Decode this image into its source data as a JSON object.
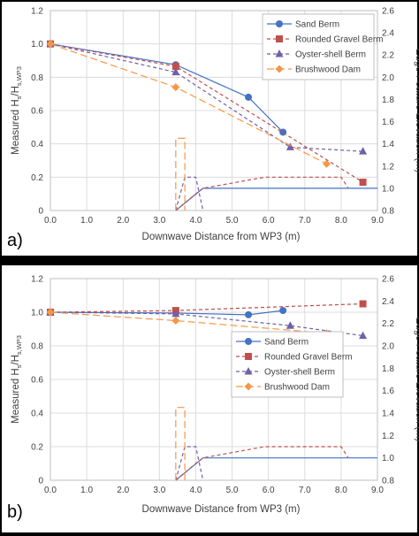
{
  "chart_data": [
    {
      "type": "line",
      "panel_label": "a)",
      "xlabel": "Downwave Distance from WP3 (m)",
      "ylabel_parts": [
        "Measured H",
        "s",
        "/H",
        "s,WP3"
      ],
      "y2label": "Edge Feature Elevation (m)",
      "xlim": [
        0,
        9
      ],
      "ylim": [
        0,
        1.2
      ],
      "y2lim": [
        0.8,
        2.6
      ],
      "x_ticks": [
        "0.0",
        "1.0",
        "2.0",
        "3.0",
        "4.0",
        "5.0",
        "6.0",
        "7.0",
        "8.0",
        "9.0"
      ],
      "y_ticks": [
        "0",
        "0.2",
        "0.4",
        "0.6",
        "0.8",
        "1.0",
        "1.2"
      ],
      "y2_ticks": [
        "0.8",
        "1.0",
        "1.2",
        "1.4",
        "1.6",
        "1.8",
        "2.0",
        "2.2",
        "2.4",
        "2.6"
      ],
      "grid": true,
      "legend_position": "top-right",
      "series": [
        {
          "name": "Sand Berm",
          "color": "#4472c4",
          "dash": "solid",
          "marker": "circle",
          "x": [
            0,
            3.45,
            5.45,
            6.4
          ],
          "y": [
            1.0,
            0.875,
            0.68,
            0.47
          ]
        },
        {
          "name": "Rounded Gravel Berm",
          "color": "#c0504d",
          "dash": "dash",
          "marker": "square",
          "x": [
            0,
            3.45,
            8.6
          ],
          "y": [
            1.0,
            0.865,
            0.17
          ]
        },
        {
          "name": "Oyster-shell Berm",
          "color": "#7060a8",
          "dash": "dash",
          "marker": "triangle",
          "x": [
            0,
            3.45,
            6.6,
            8.6
          ],
          "y": [
            1.0,
            0.83,
            0.38,
            0.355
          ]
        },
        {
          "name": "Brushwood Dam",
          "color": "#f79646",
          "dash": "longdash",
          "marker": "diamond",
          "x": [
            0,
            3.45,
            7.6
          ],
          "y": [
            1.0,
            0.74,
            0.28
          ]
        }
      ],
      "elevation_series": [
        {
          "color": "#4472c4",
          "dash": "solid",
          "x": [
            3.45,
            4.2,
            6.2,
            9.0
          ],
          "y": [
            0.8,
            1.0,
            1.0,
            1.0
          ]
        },
        {
          "color": "#c0504d",
          "dash": "dash",
          "x": [
            3.45,
            4.0,
            4.2,
            5.9,
            8.0,
            8.2
          ],
          "y": [
            0.8,
            0.95,
            1.0,
            1.1,
            1.1,
            1.0
          ]
        },
        {
          "color": "#7060a8",
          "dash": "dash",
          "x": [
            3.45,
            3.7,
            4.0,
            4.2
          ],
          "y": [
            0.8,
            1.1,
            1.1,
            0.8
          ]
        },
        {
          "color": "#f79646",
          "dash": "longdash",
          "x": [
            3.45,
            3.45,
            3.7,
            3.7
          ],
          "y": [
            0.8,
            1.45,
            1.45,
            0.8
          ]
        }
      ]
    },
    {
      "type": "line",
      "panel_label": "b)",
      "xlabel": "Downwave Distance from WP3 (m)",
      "ylabel_parts": [
        "Measured H",
        "s",
        "/H",
        "s,WP3"
      ],
      "y2label": "Edge Feature Elevation (m)",
      "xlim": [
        0,
        9
      ],
      "ylim": [
        0,
        1.2
      ],
      "y2lim": [
        0.8,
        2.6
      ],
      "x_ticks": [
        "0.0",
        "1.0",
        "2.0",
        "3.0",
        "4.0",
        "5.0",
        "6.0",
        "7.0",
        "8.0",
        "9.0"
      ],
      "y_ticks": [
        "0",
        "0.2",
        "0.4",
        "0.6",
        "0.8",
        "1.0",
        "1.2"
      ],
      "y2_ticks": [
        "0.8",
        "1.0",
        "1.2",
        "1.4",
        "1.6",
        "1.8",
        "2.0",
        "2.2",
        "2.4",
        "2.6"
      ],
      "grid": true,
      "legend_position": "center-right",
      "series": [
        {
          "name": "Sand Berm",
          "color": "#4472c4",
          "dash": "solid",
          "marker": "circle",
          "x": [
            0,
            3.45,
            5.45,
            6.4
          ],
          "y": [
            1.0,
            0.995,
            0.985,
            1.01
          ]
        },
        {
          "name": "Rounded Gravel Berm",
          "color": "#c0504d",
          "dash": "dash",
          "marker": "square",
          "x": [
            0,
            3.45,
            8.6
          ],
          "y": [
            1.0,
            1.01,
            1.05
          ]
        },
        {
          "name": "Oyster-shell Berm",
          "color": "#7060a8",
          "dash": "dash",
          "marker": "triangle",
          "x": [
            0,
            3.45,
            6.6,
            8.6
          ],
          "y": [
            1.0,
            0.99,
            0.92,
            0.86
          ]
        },
        {
          "name": "Brushwood Dam",
          "color": "#f79646",
          "dash": "longdash",
          "marker": "diamond",
          "x": [
            0,
            3.45,
            7.6
          ],
          "y": [
            1.0,
            0.95,
            0.875
          ]
        }
      ],
      "elevation_series": [
        {
          "color": "#4472c4",
          "dash": "solid",
          "x": [
            3.45,
            4.2,
            6.2,
            9.0
          ],
          "y": [
            0.8,
            1.0,
            1.0,
            1.0
          ]
        },
        {
          "color": "#c0504d",
          "dash": "dash",
          "x": [
            3.45,
            4.0,
            4.2,
            5.9,
            8.0,
            8.2
          ],
          "y": [
            0.8,
            0.95,
            1.0,
            1.1,
            1.1,
            1.0
          ]
        },
        {
          "color": "#7060a8",
          "dash": "dash",
          "x": [
            3.45,
            3.7,
            4.0,
            4.2
          ],
          "y": [
            0.8,
            1.1,
            1.1,
            0.8
          ]
        },
        {
          "color": "#f79646",
          "dash": "longdash",
          "x": [
            3.45,
            3.45,
            3.7,
            3.7
          ],
          "y": [
            0.8,
            1.45,
            1.45,
            0.8
          ]
        }
      ]
    }
  ]
}
